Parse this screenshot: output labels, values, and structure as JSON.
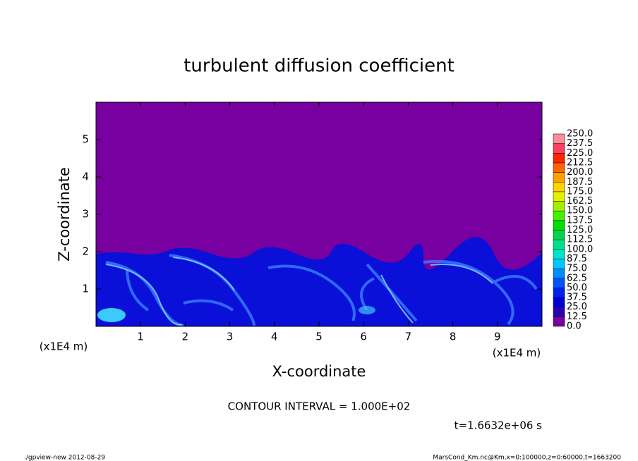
{
  "chart_data": {
    "type": "contour",
    "title": "turbulent diffusion coefficient",
    "xlabel": "X-coordinate",
    "ylabel": "Z-coordinate",
    "x_unit": "(x1E4 m)",
    "xlim": [
      0,
      10
    ],
    "ylim": [
      0,
      6
    ],
    "xticks": [
      1,
      2,
      3,
      4,
      5,
      6,
      7,
      8,
      9
    ],
    "yticks": [
      1,
      2,
      3,
      4,
      5
    ],
    "contour_interval": "CONTOUR INTERVAL = 1.000E+02",
    "time": "t=1.6632e+06 s",
    "footer_left": "./gpview-new  2012-08-29",
    "footer_right": "MarsCond_Km.nc@Km,x=0:100000,z=0:60000,t=1663200",
    "colorbar": {
      "levels": [
        {
          "value": 0,
          "label": "0.0"
        },
        {
          "value": 12.5,
          "label": "12.5"
        },
        {
          "value": 25,
          "label": "25.0"
        },
        {
          "value": 37.5,
          "label": "37.5"
        },
        {
          "value": 50,
          "label": "50.0"
        },
        {
          "value": 62.5,
          "label": "62.5"
        },
        {
          "value": 75,
          "label": "75.0"
        },
        {
          "value": 87.5,
          "label": "87.5"
        },
        {
          "value": 100,
          "label": "100.0"
        },
        {
          "value": 112.5,
          "label": "112.5"
        },
        {
          "value": 125,
          "label": "125.0"
        },
        {
          "value": 137.5,
          "label": "137.5"
        },
        {
          "value": 150,
          "label": "150.0"
        },
        {
          "value": 162.5,
          "label": "162.5"
        },
        {
          "value": 175,
          "label": "175.0"
        },
        {
          "value": 187.5,
          "label": "187.5"
        },
        {
          "value": 200,
          "label": "200.0"
        },
        {
          "value": 212.5,
          "label": "212.5"
        },
        {
          "value": 225,
          "label": "225.0"
        },
        {
          "value": 237.5,
          "label": "237.5"
        },
        {
          "value": 250,
          "label": "250.0"
        }
      ],
      "colors": [
        "#7800a0",
        "#2a00b4",
        "#0000d2",
        "#0022f0",
        "#0052ff",
        "#008cff",
        "#00c8ff",
        "#00e4c8",
        "#00e08c",
        "#00d450",
        "#00e000",
        "#48f000",
        "#a0f000",
        "#e4f000",
        "#ffd200",
        "#ffa000",
        "#ff6400",
        "#ff2400",
        "#ff4060",
        "#ff8c96"
      ]
    }
  }
}
